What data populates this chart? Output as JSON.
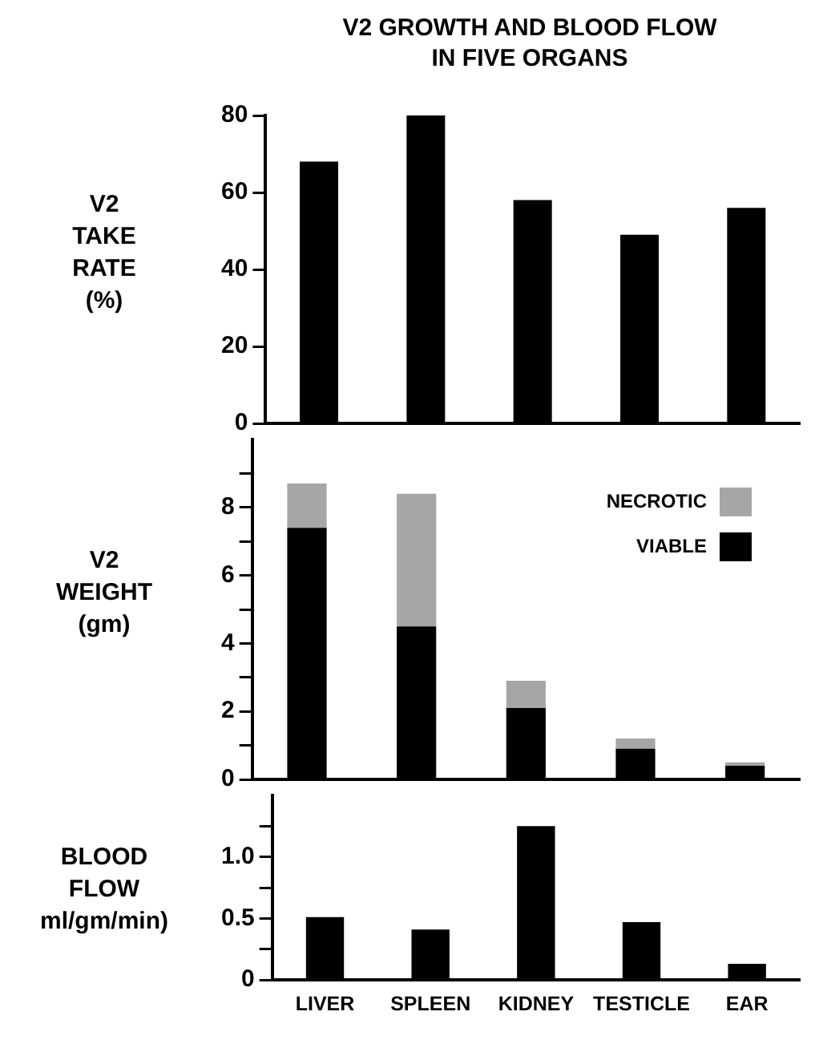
{
  "chart_data": [
    {
      "type": "bar",
      "title": "V2 GROWTH AND BLOOD FLOW\nIN FIVE ORGANS",
      "ylabel": "V2\nTAKE\nRATE\n(%)",
      "categories": [
        null,
        null,
        null,
        null,
        null
      ],
      "values": [
        68,
        80,
        58,
        49,
        56
      ],
      "color": "#000000",
      "ylim": [
        0,
        80
      ],
      "yticks": [
        0,
        20,
        40,
        60,
        80
      ],
      "tick_labels": "y"
    },
    {
      "type": "bar",
      "ylabel": "V2\nWEIGHT\n(gm)",
      "stacked": true,
      "legend": "top right",
      "categories": [
        null,
        null,
        null,
        null,
        null
      ],
      "series": [
        {
          "name": "VIABLE",
          "color": "#000000",
          "values": [
            7.4,
            4.5,
            2.1,
            0.9,
            0.4
          ]
        },
        {
          "name": "NECROTIC",
          "color": "#a6a6a6",
          "values": [
            1.3,
            3.9,
            0.8,
            0.3,
            0.1
          ]
        }
      ],
      "ylim": [
        0,
        10
      ],
      "yticks": [
        0,
        {
          "value": 1,
          "label": null
        },
        2,
        {
          "value": 3,
          "label": null
        },
        4,
        {
          "value": 5,
          "label": null
        },
        6,
        {
          "value": 7,
          "label": null
        },
        8,
        {
          "value": 9,
          "label": null
        }
      ],
      "tick_labels": "y"
    },
    {
      "type": "bar",
      "ylabel": "BLOOD\nFLOW\nml/gm/min)",
      "categories": [
        "LIVER",
        "SPLEEN",
        "KIDNEY",
        "TESTICLE",
        "EAR"
      ],
      "values": [
        0.51,
        0.41,
        1.25,
        0.47,
        0.13
      ],
      "color": "#000000",
      "ylim": [
        0,
        1.5
      ],
      "yticks": [
        0,
        {
          "value": 0.25,
          "label": null
        },
        0.5,
        {
          "value": 0.75,
          "label": null
        },
        {
          "value": 1,
          "label": "1.0"
        },
        {
          "value": 1.25,
          "label": null
        }
      ]
    }
  ]
}
